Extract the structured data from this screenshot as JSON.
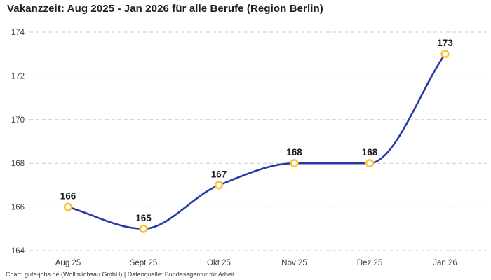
{
  "chart_data": {
    "type": "line",
    "title": "Vakanzzeit: Aug 2025 - Jan 2026 für alle Berufe (Region Berlin)",
    "categories": [
      "Aug 25",
      "Sept 25",
      "Okt 25",
      "Nov 25",
      "Dez 25",
      "Jan 26"
    ],
    "values": [
      166,
      165,
      167,
      168,
      168,
      173
    ],
    "data_labels": [
      "166",
      "165",
      "167",
      "168",
      "168",
      "173"
    ],
    "yticks": [
      164,
      166,
      168,
      170,
      172,
      174
    ],
    "ylim": [
      164,
      174
    ],
    "xlabel": "",
    "ylabel": "",
    "grid": "horizontal-dashed",
    "legend": "none",
    "curve": "smooth-monotone",
    "colors": {
      "line": "#2639a5",
      "marker_stroke": "#fbc337",
      "marker_fill": "#ffffff",
      "gridline": "#c9c9c9",
      "tick_text": "#3d3d3d",
      "label_text": "#1a1a1a"
    }
  },
  "footer": {
    "text": "Chart: gute-jobs.de (Wollmilchsau GmbH) | Datenquelle: Bundesagentur für Arbeit"
  }
}
